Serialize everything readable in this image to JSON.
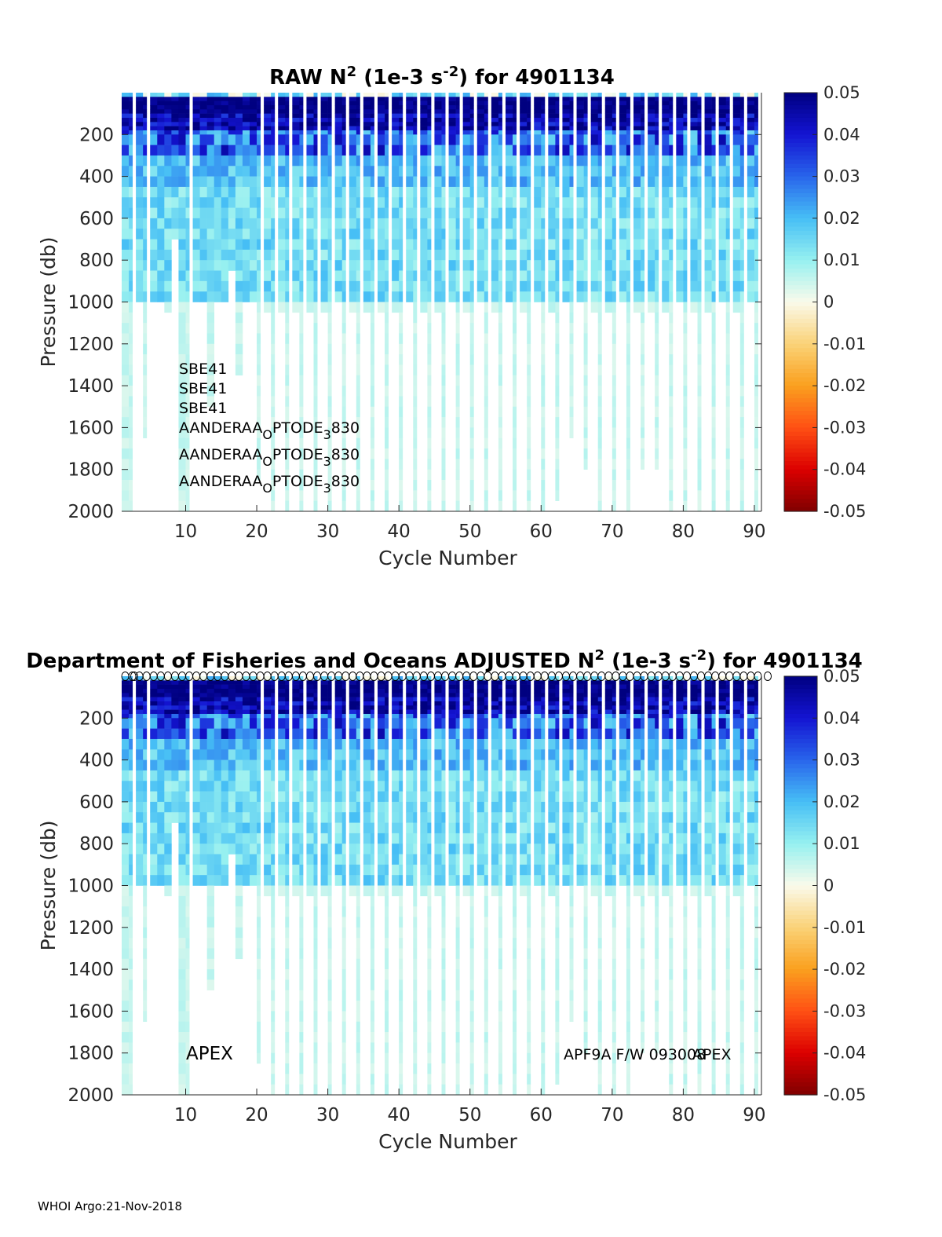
{
  "footer": "WHOI Argo:21-Nov-2018",
  "chart_data": [
    {
      "type": "heatmap",
      "title_prefix": "RAW N",
      "title_sup1": "2",
      "title_mid": " (1e-3 s",
      "title_sup2": "-2",
      "title_suffix": ") for 4901134",
      "xlabel": "Cycle Number",
      "ylabel": "Pressure (db)",
      "xlim": [
        1,
        91
      ],
      "ylim": [
        0,
        2000
      ],
      "y_reversed": true,
      "xticks": [
        10,
        20,
        30,
        40,
        50,
        60,
        70,
        80,
        90
      ],
      "yticks": [
        200,
        400,
        600,
        800,
        1000,
        1200,
        1400,
        1600,
        1800,
        2000
      ],
      "colorbar": {
        "clim": [
          -0.05,
          0.05
        ],
        "ticks": [
          "0.05",
          "0.04",
          "0.03",
          "0.02",
          "0.01",
          "0",
          "-0.01",
          "-0.02",
          "-0.03",
          "-0.04",
          "-0.05"
        ]
      },
      "annotations": [
        "SBE41",
        "SBE41",
        "SBE41"
      ],
      "annotations_sub": [
        {
          "a": "AANDERAA",
          "b": "O",
          "c": "PTODE",
          "d": "3",
          "e": "830"
        },
        {
          "a": "AANDERAA",
          "b": "O",
          "c": "PTODE",
          "d": "3",
          "e": "830"
        },
        {
          "a": "AANDERAA",
          "b": "O",
          "c": "PTODE",
          "d": "3",
          "e": "830"
        }
      ]
    },
    {
      "type": "heatmap",
      "title_prefix": "Department of Fisheries and Oceans  ADJUSTED N",
      "title_sup1": "2",
      "title_mid": " (1e-3 s",
      "title_sup2": "-2",
      "title_suffix": ") for 4901134",
      "xlabel": "Cycle Number",
      "ylabel": "Pressure (db)",
      "xlim": [
        1,
        91
      ],
      "ylim": [
        0,
        2000
      ],
      "y_reversed": true,
      "xticks": [
        10,
        20,
        30,
        40,
        50,
        60,
        70,
        80,
        90
      ],
      "yticks": [
        200,
        400,
        600,
        800,
        1000,
        1200,
        1400,
        1600,
        1800,
        2000
      ],
      "colorbar": {
        "clim": [
          -0.05,
          0.05
        ],
        "ticks": [
          "0.05",
          "0.04",
          "0.03",
          "0.02",
          "0.01",
          "0",
          "-0.01",
          "-0.02",
          "-0.03",
          "-0.04",
          "-0.05"
        ]
      },
      "annotation_left": "APEX",
      "annotation_right_a": "APF9A F/W 093008",
      "annotation_right_b": "APEX",
      "top_markers": "o"
    }
  ],
  "profile_depths": [
    2000,
    2000,
    1000,
    1650,
    1000,
    1000,
    1050,
    700,
    2000,
    2000,
    1000,
    1000,
    1500,
    1000,
    1000,
    850,
    1350,
    1000,
    1000,
    1850,
    1050,
    2000,
    1050,
    2000,
    1050,
    2000,
    1050,
    2000,
    1050,
    2000,
    1000,
    2000,
    1050,
    2000,
    1050,
    2000,
    1050,
    2000,
    1050,
    2000,
    1000,
    2000,
    1050,
    2000,
    1050,
    2000,
    1000,
    2000,
    1050,
    2000,
    1000,
    2000,
    1050,
    2000,
    1000,
    2000,
    1050,
    2000,
    1000,
    2000,
    1050,
    1950,
    1000,
    1650,
    1000,
    1800,
    1050,
    2000,
    1050,
    2000,
    1000,
    2000,
    1050,
    1800,
    1050,
    1800,
    1050,
    2000,
    1000,
    2000,
    1050,
    2000,
    1050,
    2000,
    1000,
    2000,
    1050,
    2000,
    1000,
    2000
  ]
}
